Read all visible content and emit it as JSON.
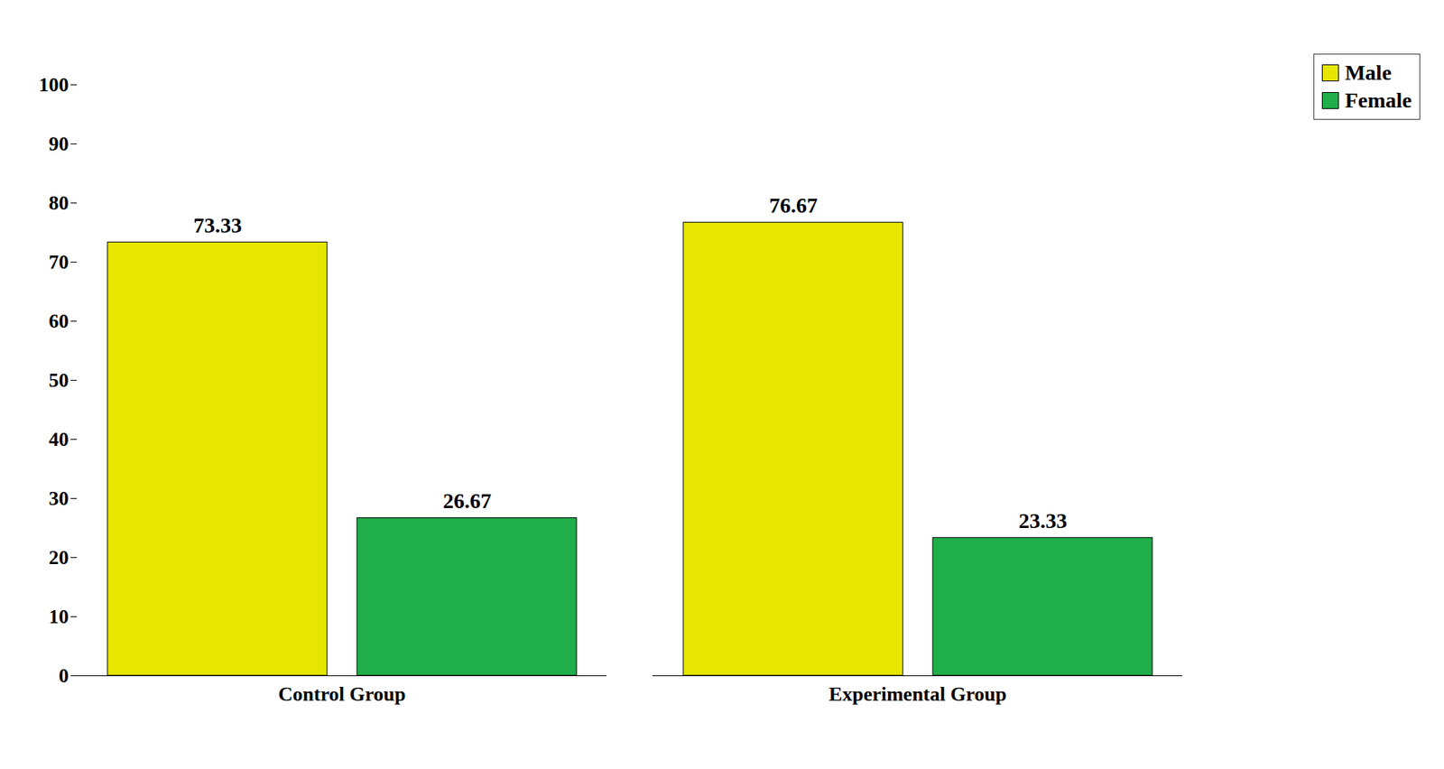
{
  "chart_data": {
    "type": "bar",
    "categories": [
      "Control Group",
      "Experimental Group"
    ],
    "series": [
      {
        "name": "Male",
        "color": "#e6e600",
        "values": [
          73.33,
          76.67
        ]
      },
      {
        "name": "Female",
        "color": "#1fae4a",
        "values": [
          26.67,
          23.33
        ]
      }
    ],
    "ylim": [
      0,
      100
    ],
    "yticks": [
      0,
      10,
      20,
      30,
      40,
      50,
      60,
      70,
      80,
      90,
      100
    ],
    "legend": "top-right",
    "data_labels": true,
    "grid": false
  }
}
